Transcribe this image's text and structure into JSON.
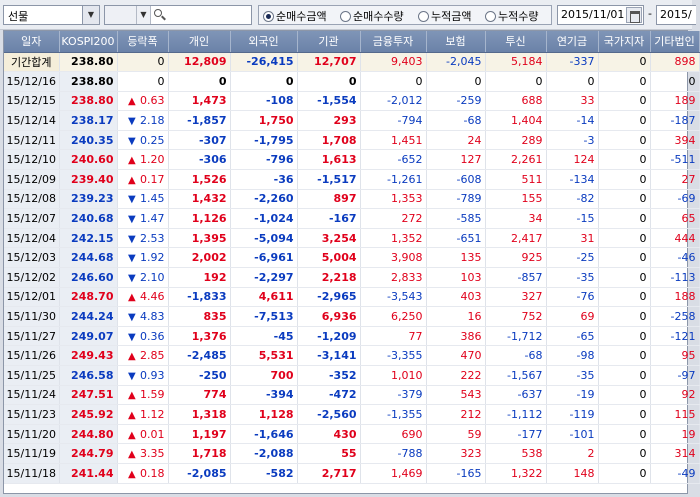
{
  "toolbar": {
    "market_select": "선물",
    "radios": [
      {
        "label": "순매수금액",
        "checked": true
      },
      {
        "label": "순매수수량",
        "checked": false
      },
      {
        "label": "누적금액",
        "checked": false
      },
      {
        "label": "누적수량",
        "checked": false
      }
    ],
    "date_from": "2015/11/01",
    "date_to": "2015/"
  },
  "table": {
    "headers": [
      "일자",
      "KOSPI200",
      "등락폭",
      "개인",
      "외국인",
      "기관",
      "금융투자",
      "보험",
      "투신",
      "연기금",
      "국가지자",
      "기타법인"
    ],
    "rows": [
      {
        "date": "기간합계",
        "kospi": "238.80",
        "dir": "",
        "chg": "0",
        "v": [
          "12,809",
          "-26,415",
          "12,707",
          "9,403",
          "-2,045",
          "5,184",
          "-337",
          "0",
          "898"
        ],
        "sum": true
      },
      {
        "date": "15/12/16",
        "kospi": "238.80",
        "dir": "",
        "chg": "0",
        "v": [
          "0",
          "0",
          "0",
          "0",
          "0",
          "0",
          "0",
          "0",
          "0"
        ]
      },
      {
        "date": "15/12/15",
        "kospi": "238.80",
        "dir": "up",
        "chg": "0.63",
        "v": [
          "1,473",
          "-108",
          "-1,554",
          "-2,012",
          "-259",
          "688",
          "33",
          "0",
          "189"
        ]
      },
      {
        "date": "15/12/14",
        "kospi": "238.17",
        "dir": "dn",
        "chg": "2.18",
        "v": [
          "-1,857",
          "1,750",
          "293",
          "-794",
          "-68",
          "1,404",
          "-14",
          "0",
          "-187"
        ]
      },
      {
        "date": "15/12/11",
        "kospi": "240.35",
        "dir": "dn",
        "chg": "0.25",
        "v": [
          "-307",
          "-1,795",
          "1,708",
          "1,451",
          "24",
          "289",
          "-3",
          "0",
          "394"
        ]
      },
      {
        "date": "15/12/10",
        "kospi": "240.60",
        "dir": "up",
        "chg": "1.20",
        "v": [
          "-306",
          "-796",
          "1,613",
          "-652",
          "127",
          "2,261",
          "124",
          "0",
          "-511"
        ]
      },
      {
        "date": "15/12/09",
        "kospi": "239.40",
        "dir": "up",
        "chg": "0.17",
        "v": [
          "1,526",
          "-36",
          "-1,517",
          "-1,261",
          "-608",
          "511",
          "-134",
          "0",
          "27"
        ]
      },
      {
        "date": "15/12/08",
        "kospi": "239.23",
        "dir": "dn",
        "chg": "1.45",
        "v": [
          "1,432",
          "-2,260",
          "897",
          "1,353",
          "-789",
          "155",
          "-82",
          "0",
          "-69"
        ]
      },
      {
        "date": "15/12/07",
        "kospi": "240.68",
        "dir": "dn",
        "chg": "1.47",
        "v": [
          "1,126",
          "-1,024",
          "-167",
          "272",
          "-585",
          "34",
          "-15",
          "0",
          "65"
        ]
      },
      {
        "date": "15/12/04",
        "kospi": "242.15",
        "dir": "dn",
        "chg": "2.53",
        "v": [
          "1,395",
          "-5,094",
          "3,254",
          "1,352",
          "-651",
          "2,417",
          "31",
          "0",
          "444"
        ]
      },
      {
        "date": "15/12/03",
        "kospi": "244.68",
        "dir": "dn",
        "chg": "1.92",
        "v": [
          "2,002",
          "-6,961",
          "5,004",
          "3,908",
          "135",
          "925",
          "-25",
          "0",
          "-46"
        ]
      },
      {
        "date": "15/12/02",
        "kospi": "246.60",
        "dir": "dn",
        "chg": "2.10",
        "v": [
          "192",
          "-2,297",
          "2,218",
          "2,833",
          "103",
          "-857",
          "-35",
          "0",
          "-113"
        ]
      },
      {
        "date": "15/12/01",
        "kospi": "248.70",
        "dir": "up",
        "chg": "4.46",
        "v": [
          "-1,833",
          "4,611",
          "-2,965",
          "-3,543",
          "403",
          "327",
          "-76",
          "0",
          "188"
        ]
      },
      {
        "date": "15/11/30",
        "kospi": "244.24",
        "dir": "dn",
        "chg": "4.83",
        "v": [
          "835",
          "-7,513",
          "6,936",
          "6,250",
          "16",
          "752",
          "69",
          "0",
          "-258"
        ]
      },
      {
        "date": "15/11/27",
        "kospi": "249.07",
        "dir": "dn",
        "chg": "0.36",
        "v": [
          "1,376",
          "-45",
          "-1,209",
          "77",
          "386",
          "-1,712",
          "-65",
          "0",
          "-121"
        ]
      },
      {
        "date": "15/11/26",
        "kospi": "249.43",
        "dir": "up",
        "chg": "2.85",
        "v": [
          "-2,485",
          "5,531",
          "-3,141",
          "-3,355",
          "470",
          "-68",
          "-98",
          "0",
          "95"
        ]
      },
      {
        "date": "15/11/25",
        "kospi": "246.58",
        "dir": "dn",
        "chg": "0.93",
        "v": [
          "-250",
          "700",
          "-352",
          "1,010",
          "222",
          "-1,567",
          "-35",
          "0",
          "-97"
        ]
      },
      {
        "date": "15/11/24",
        "kospi": "247.51",
        "dir": "up",
        "chg": "1.59",
        "v": [
          "774",
          "-394",
          "-472",
          "-379",
          "543",
          "-637",
          "-19",
          "0",
          "92"
        ]
      },
      {
        "date": "15/11/23",
        "kospi": "245.92",
        "dir": "up",
        "chg": "1.12",
        "v": [
          "1,318",
          "1,128",
          "-2,560",
          "-1,355",
          "212",
          "-1,112",
          "-119",
          "0",
          "115"
        ]
      },
      {
        "date": "15/11/20",
        "kospi": "244.80",
        "dir": "up",
        "chg": "0.01",
        "v": [
          "1,197",
          "-1,646",
          "430",
          "690",
          "59",
          "-177",
          "-101",
          "0",
          "19"
        ]
      },
      {
        "date": "15/11/19",
        "kospi": "244.79",
        "dir": "up",
        "chg": "3.35",
        "v": [
          "1,718",
          "-2,088",
          "55",
          "-788",
          "323",
          "538",
          "2",
          "0",
          "314"
        ]
      },
      {
        "date": "15/11/18",
        "kospi": "241.44",
        "dir": "up",
        "chg": "0.18",
        "v": [
          "-2,085",
          "-582",
          "2,717",
          "1,469",
          "-165",
          "1,322",
          "148",
          "0",
          "-49"
        ]
      }
    ]
  },
  "colors": {
    "up": "#e0001b",
    "down": "#0a3bbf",
    "header": "#7389ad"
  },
  "icons": {
    "up": "triangle-up-icon",
    "down": "triangle-down-icon"
  }
}
